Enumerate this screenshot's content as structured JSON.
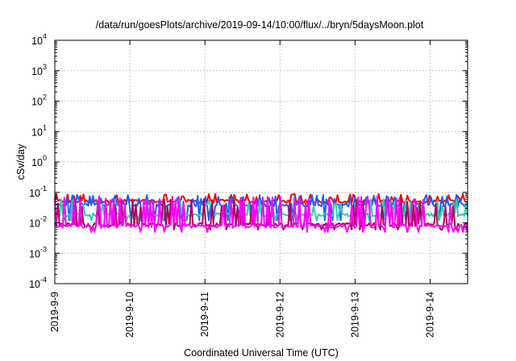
{
  "chart_data": {
    "type": "line",
    "title": "/data/run/goesPlots/archive/2019-09-14/10:00/flux/../bryn/5daysMoon.plot",
    "xlabel": "Coordinated Universal Time (UTC)",
    "ylabel": "cSv/day",
    "y_scale": "log",
    "ylim": [
      0.0001,
      10000
    ],
    "yticks": [
      {
        "value": 0.0001,
        "base": "10",
        "exp": "-4"
      },
      {
        "value": 0.001,
        "base": "10",
        "exp": "-3"
      },
      {
        "value": 0.01,
        "base": "10",
        "exp": "-2"
      },
      {
        "value": 0.1,
        "base": "10",
        "exp": "-1"
      },
      {
        "value": 1,
        "base": "10",
        "exp": "0"
      },
      {
        "value": 10,
        "base": "10",
        "exp": "1"
      },
      {
        "value": 100,
        "base": "10",
        "exp": "2"
      },
      {
        "value": 1000,
        "base": "10",
        "exp": "3"
      },
      {
        "value": 10000,
        "base": "10",
        "exp": "4"
      }
    ],
    "xlim": [
      "2019-09-09",
      "2019-09-14T12:00"
    ],
    "xticks": [
      "2019-9-9",
      "2019-9-10",
      "2019-9-11",
      "2019-9-12",
      "2019-9-13",
      "2019-9-14"
    ],
    "grid": true,
    "series": [
      {
        "color": "#ff0000",
        "baseline": 0.05,
        "spike": 0.09,
        "dip": 0.045
      },
      {
        "color": "#1a5fff",
        "baseline": 0.038,
        "spike": 0.085,
        "dip": 0.012
      },
      {
        "color": "#2ad0b0",
        "baseline": 0.018,
        "spike": 0.06,
        "dip": 0.012
      },
      {
        "color": "#b0005a",
        "baseline": 0.0085,
        "spike": 0.065,
        "dip": 0.006
      },
      {
        "color": "#ff00ff",
        "baseline": 0.0075,
        "spike": 0.075,
        "dip": 0.005
      }
    ]
  }
}
